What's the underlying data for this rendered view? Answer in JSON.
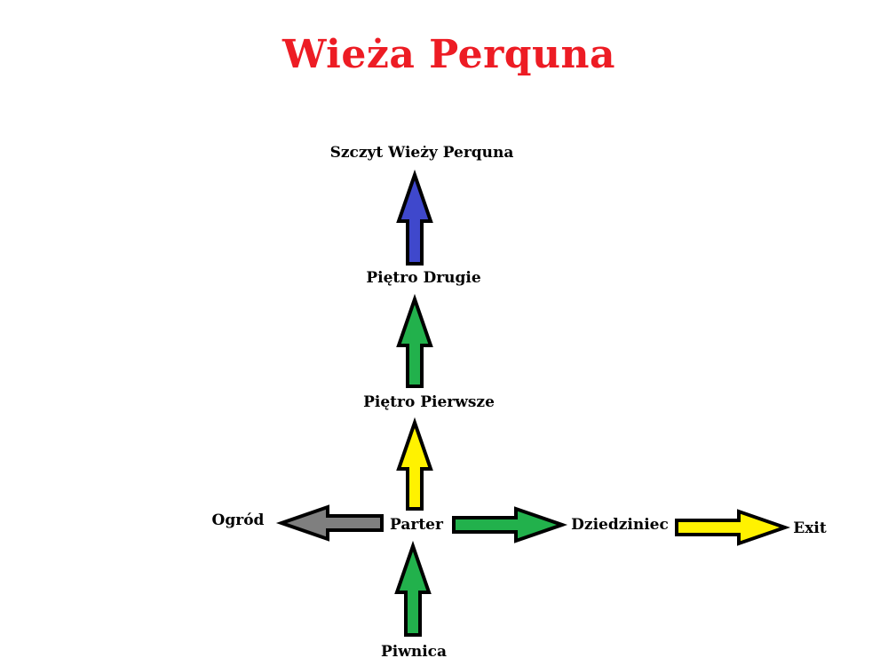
{
  "title": "Wieża Perquna",
  "colors": {
    "title": "#ed1c24",
    "blue": "#3f48cc",
    "green": "#22b14c",
    "yellow": "#fff200",
    "gray": "#7f7f7f",
    "outline": "#000000"
  },
  "rooms": {
    "top": "Szczyt Wieży Perquna",
    "second": "Piętro Drugie",
    "first": "Piętro Pierwsze",
    "ground": "Parter",
    "garden": "Ogród",
    "courtyard": "Dziedziniec",
    "exit": "Exit",
    "basement": "Piwnica"
  },
  "connections": [
    {
      "from": "second",
      "to": "top",
      "color": "blue"
    },
    {
      "from": "first",
      "to": "second",
      "color": "green"
    },
    {
      "from": "ground",
      "to": "first",
      "color": "yellow"
    },
    {
      "from": "ground",
      "to": "garden",
      "color": "gray"
    },
    {
      "from": "ground",
      "to": "courtyard",
      "color": "green"
    },
    {
      "from": "courtyard",
      "to": "exit",
      "color": "yellow"
    },
    {
      "from": "basement",
      "to": "ground",
      "color": "green"
    }
  ]
}
